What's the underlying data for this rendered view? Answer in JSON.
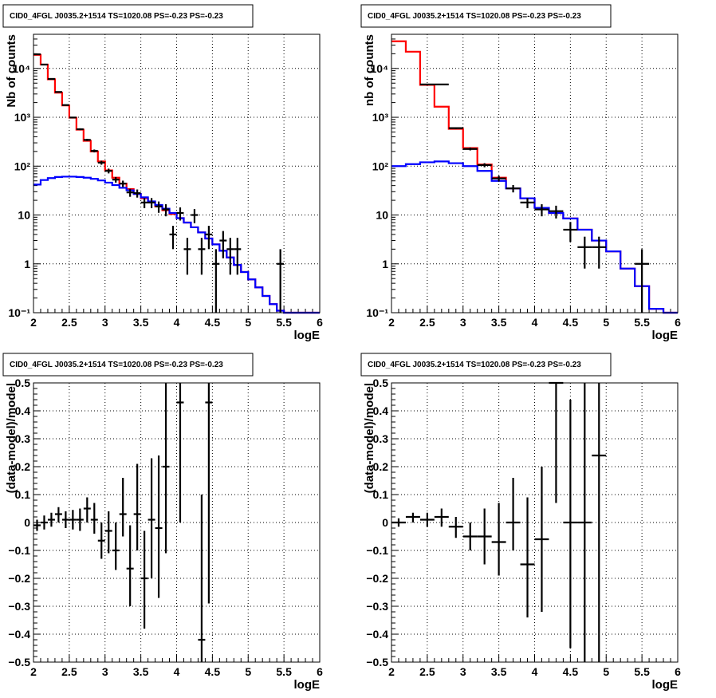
{
  "chart_data": [
    {
      "type": "line",
      "title": "CID0_4FGL J0035.2+1514 TS=1020.08 PS=-0.23 PS=-0.23",
      "xlabel": "logE",
      "ylabel": "Nb of counts",
      "ylog": true,
      "xlim": [
        2,
        6
      ],
      "ylim": [
        0.1,
        50000
      ],
      "x_ticks": [
        "2",
        "2.5",
        "3",
        "3.5",
        "4",
        "4.5",
        "5",
        "5.5",
        "6"
      ],
      "y_ticks": [
        "10⁻¹",
        "1",
        "10",
        "10²",
        "10³",
        "10⁴"
      ],
      "grid": true,
      "bin_edges": [
        2.0,
        2.1,
        2.2,
        2.3,
        2.4,
        2.5,
        2.6,
        2.7,
        2.8,
        2.9,
        3.0,
        3.1,
        3.2,
        3.3,
        3.4,
        3.5,
        3.6,
        3.7,
        3.8,
        3.9,
        4.0,
        4.1,
        4.2,
        4.3,
        4.4,
        4.5,
        4.6,
        4.7,
        4.8,
        4.9,
        5.0,
        5.1,
        5.2,
        5.3,
        5.4,
        5.5,
        5.6,
        5.7,
        5.8,
        5.9,
        6.0
      ],
      "series": [
        {
          "color": "#ff0000",
          "values": [
            19000,
            12000,
            6000,
            3200,
            1750,
            980,
            560,
            330,
            200,
            125,
            82,
            58,
            44,
            34,
            27,
            22,
            18,
            15,
            12.5,
            10.5,
            8.6,
            7,
            5.6,
            4.4,
            3.3,
            2.5,
            1.85,
            1.35,
            0.95,
            0.68,
            0.48,
            0.33,
            0.22,
            0.15,
            0.11,
            0.1,
            0.1,
            0.1,
            0.1,
            0.1
          ]
        },
        {
          "color": "#0000ff",
          "values": [
            42,
            52,
            57,
            60,
            61,
            61,
            60,
            58,
            55,
            51,
            46,
            41,
            36,
            32,
            27,
            23,
            19,
            16,
            13.5,
            11,
            8.6,
            7,
            5.6,
            4.4,
            3.3,
            2.5,
            1.85,
            1.35,
            0.95,
            0.68,
            0.48,
            0.33,
            0.22,
            0.15,
            0.11,
            0.1,
            0.1,
            0.1,
            0.1,
            0.1
          ]
        }
      ],
      "points": [
        {
          "x": 2.05,
          "y": 19500,
          "ylo": 19300,
          "yhi": 19700
        },
        {
          "x": 2.15,
          "y": 12000,
          "ylo": 11900,
          "yhi": 12100
        },
        {
          "x": 2.25,
          "y": 6100,
          "ylo": 6000,
          "yhi": 6200
        },
        {
          "x": 2.35,
          "y": 3300,
          "ylo": 3240,
          "yhi": 3360
        },
        {
          "x": 2.45,
          "y": 1780,
          "ylo": 1740,
          "yhi": 1820
        },
        {
          "x": 2.55,
          "y": 990,
          "ylo": 960,
          "yhi": 1020
        },
        {
          "x": 2.65,
          "y": 570,
          "ylo": 546,
          "yhi": 594
        },
        {
          "x": 2.75,
          "y": 345,
          "ylo": 327,
          "yhi": 363
        },
        {
          "x": 2.85,
          "y": 205,
          "ylo": 191,
          "yhi": 219
        },
        {
          "x": 2.95,
          "y": 118,
          "ylo": 107,
          "yhi": 129
        },
        {
          "x": 3.05,
          "y": 80,
          "ylo": 71,
          "yhi": 89
        },
        {
          "x": 3.15,
          "y": 53,
          "ylo": 46,
          "yhi": 60
        },
        {
          "x": 3.25,
          "y": 44,
          "ylo": 37.5,
          "yhi": 50.5
        },
        {
          "x": 3.35,
          "y": 29,
          "ylo": 23.6,
          "yhi": 34.4
        },
        {
          "x": 3.45,
          "y": 28,
          "ylo": 22.7,
          "yhi": 33.3
        },
        {
          "x": 3.55,
          "y": 18,
          "ylo": 13.8,
          "yhi": 22.2
        },
        {
          "x": 3.65,
          "y": 18,
          "ylo": 13.8,
          "yhi": 22.2
        },
        {
          "x": 3.75,
          "y": 15,
          "ylo": 11.1,
          "yhi": 18.9
        },
        {
          "x": 3.85,
          "y": 13,
          "ylo": 9.4,
          "yhi": 16.6
        },
        {
          "x": 3.95,
          "y": 4,
          "ylo": 2,
          "yhi": 6
        },
        {
          "x": 4.05,
          "y": 11,
          "ylo": 7.7,
          "yhi": 14.3
        },
        {
          "x": 4.15,
          "y": 2,
          "ylo": 0.6,
          "yhi": 3.4
        },
        {
          "x": 4.25,
          "y": 10,
          "ylo": 6.8,
          "yhi": 13.2
        },
        {
          "x": 4.35,
          "y": 2,
          "ylo": 0.6,
          "yhi": 3.4
        },
        {
          "x": 4.45,
          "y": 4,
          "ylo": 2,
          "yhi": 6
        },
        {
          "x": 4.55,
          "y": 1,
          "ylo": 0.1,
          "yhi": 2
        },
        {
          "x": 4.65,
          "y": 3,
          "ylo": 1.3,
          "yhi": 4.7
        },
        {
          "x": 4.75,
          "y": 2,
          "ylo": 0.6,
          "yhi": 3.4
        },
        {
          "x": 4.85,
          "y": 2,
          "ylo": 0.6,
          "yhi": 3.4
        },
        {
          "x": 5.45,
          "y": 1,
          "ylo": 0.1,
          "yhi": 2
        }
      ],
      "xerr": 0.05
    },
    {
      "type": "line",
      "title": "CID0_4FGL J0035.2+1514 TS=1020.08 PS=-0.23 PS=-0.23",
      "xlabel": "logE",
      "ylabel": "nb of counts",
      "ylog": true,
      "xlim": [
        2,
        6
      ],
      "ylim": [
        0.1,
        50000
      ],
      "x_ticks": [
        "2",
        "2.5",
        "3",
        "3.5",
        "4",
        "4.5",
        "5",
        "5.5",
        "6"
      ],
      "y_ticks": [
        "10⁻¹",
        "1",
        "10",
        "10²",
        "10³",
        "10⁴"
      ],
      "grid": true,
      "bin_edges": [
        2.0,
        2.2,
        2.4,
        2.6,
        2.8,
        3.0,
        3.2,
        3.4,
        3.6,
        3.8,
        4.0,
        4.2,
        4.4,
        4.6,
        4.8,
        5.0,
        5.2,
        5.4,
        5.6,
        5.8,
        6.0
      ],
      "series": [
        {
          "color": "#ff0000",
          "values": [
            36000,
            22000,
            4600,
            1650,
            580,
            235,
            108,
            58,
            35,
            22,
            14,
            11,
            8.5,
            5,
            3,
            1.8,
            0.8,
            0.35,
            0.12,
            0.1
          ]
        },
        {
          "color": "#0000ff",
          "values": [
            100,
            110,
            120,
            125,
            115,
            100,
            80,
            50,
            35,
            22,
            14,
            11,
            8.5,
            5,
            3,
            1.8,
            0.8,
            0.35,
            0.12,
            0.1
          ]
        }
      ],
      "points": [
        {
          "x": 2.5,
          "y": 4700,
          "ylo": 4630,
          "yhi": 4770
        },
        {
          "x": 2.7,
          "y": 4700,
          "ylo": 4630,
          "yhi": 4770
        },
        {
          "x": 2.9,
          "y": 600,
          "ylo": 575,
          "yhi": 625
        },
        {
          "x": 3.1,
          "y": 225,
          "ylo": 210,
          "yhi": 240
        },
        {
          "x": 3.3,
          "y": 105,
          "ylo": 95,
          "yhi": 115
        },
        {
          "x": 3.5,
          "y": 56,
          "ylo": 48.5,
          "yhi": 63.5
        },
        {
          "x": 3.7,
          "y": 35,
          "ylo": 29,
          "yhi": 41
        },
        {
          "x": 3.9,
          "y": 18,
          "ylo": 13.8,
          "yhi": 22.2
        },
        {
          "x": 4.1,
          "y": 13,
          "ylo": 9.4,
          "yhi": 16.6
        },
        {
          "x": 4.3,
          "y": 12,
          "ylo": 8.5,
          "yhi": 15.5
        },
        {
          "x": 4.5,
          "y": 5,
          "ylo": 2.8,
          "yhi": 7.2
        },
        {
          "x": 4.7,
          "y": 2.2,
          "ylo": 0.8,
          "yhi": 3.6
        },
        {
          "x": 4.9,
          "y": 2.2,
          "ylo": 0.8,
          "yhi": 3.6
        },
        {
          "x": 5.5,
          "y": 1,
          "ylo": 0.1,
          "yhi": 2
        }
      ],
      "xerr": 0.1
    },
    {
      "type": "scatter",
      "title": "CID0_4FGL J0035.2+1514 TS=1020.08 PS=-0.23 PS=-0.23",
      "xlabel": "logE",
      "ylabel": "(data-model)/model",
      "xlim": [
        2,
        6
      ],
      "ylim": [
        -0.5,
        0.5
      ],
      "x_ticks": [
        "2",
        "2.5",
        "3",
        "3.5",
        "4",
        "4.5",
        "5",
        "5.5",
        "6"
      ],
      "y_ticks": [
        "−0.5",
        "−0.4",
        "−0.3",
        "−0.2",
        "−0.1",
        "0",
        "0.1",
        "0.2",
        "0.3",
        "0.4",
        "0.5"
      ],
      "grid": true,
      "points": [
        {
          "x": 2.05,
          "y": -0.01,
          "ylo": -0.03,
          "yhi": 0.01
        },
        {
          "x": 2.15,
          "y": 0.0,
          "ylo": -0.025,
          "yhi": 0.025
        },
        {
          "x": 2.25,
          "y": 0.01,
          "ylo": -0.015,
          "yhi": 0.035
        },
        {
          "x": 2.35,
          "y": 0.03,
          "ylo": 0.0,
          "yhi": 0.055
        },
        {
          "x": 2.45,
          "y": 0.01,
          "ylo": -0.02,
          "yhi": 0.04
        },
        {
          "x": 2.55,
          "y": 0.01,
          "ylo": -0.025,
          "yhi": 0.045
        },
        {
          "x": 2.65,
          "y": 0.01,
          "ylo": -0.03,
          "yhi": 0.05
        },
        {
          "x": 2.75,
          "y": 0.05,
          "ylo": 0.0,
          "yhi": 0.09
        },
        {
          "x": 2.85,
          "y": 0.01,
          "ylo": -0.04,
          "yhi": 0.07
        },
        {
          "x": 2.95,
          "y": -0.065,
          "ylo": -0.13,
          "yhi": 0.0
        },
        {
          "x": 3.05,
          "y": -0.03,
          "ylo": -0.11,
          "yhi": 0.04
        },
        {
          "x": 3.15,
          "y": -0.1,
          "ylo": -0.17,
          "yhi": 0.0
        },
        {
          "x": 3.25,
          "y": 0.03,
          "ylo": -0.05,
          "yhi": 0.16
        },
        {
          "x": 3.35,
          "y": -0.165,
          "ylo": -0.3,
          "yhi": -0.01
        },
        {
          "x": 3.45,
          "y": 0.03,
          "ylo": -0.1,
          "yhi": 0.21
        },
        {
          "x": 3.55,
          "y": -0.2,
          "ylo": -0.38,
          "yhi": -0.03
        },
        {
          "x": 3.65,
          "y": 0.01,
          "ylo": -0.2,
          "yhi": 0.23
        },
        {
          "x": 3.75,
          "y": -0.02,
          "ylo": -0.27,
          "yhi": 0.24
        },
        {
          "x": 3.85,
          "y": 0.2,
          "ylo": -0.11,
          "yhi": 0.5
        },
        {
          "x": 4.05,
          "y": 0.43,
          "ylo": 0.0,
          "yhi": 0.5
        },
        {
          "x": 4.35,
          "y": -0.42,
          "ylo": -0.5,
          "yhi": 0.1
        },
        {
          "x": 4.45,
          "y": 0.43,
          "ylo": -0.29,
          "yhi": 0.5
        }
      ],
      "xerr": 0.05
    },
    {
      "type": "scatter",
      "title": "CID0_4FGL J0035.2+1514 TS=1020.08 PS=-0.23 PS=-0.23",
      "xlabel": "logE",
      "ylabel": "(data-model)/model",
      "xlim": [
        2,
        6
      ],
      "ylim": [
        -0.5,
        0.5
      ],
      "x_ticks": [
        "2",
        "2.5",
        "3",
        "3.5",
        "4",
        "4.5",
        "5",
        "5.5",
        "6"
      ],
      "y_ticks": [
        "−0.5",
        "−0.4",
        "−0.3",
        "−0.2",
        "−0.1",
        "0",
        "0.1",
        "0.2",
        "0.3",
        "0.4",
        "0.5"
      ],
      "grid": true,
      "points": [
        {
          "x": 2.1,
          "y": 0.0,
          "ylo": -0.015,
          "yhi": 0.015
        },
        {
          "x": 2.3,
          "y": 0.02,
          "ylo": 0.0,
          "yhi": 0.035
        },
        {
          "x": 2.5,
          "y": 0.01,
          "ylo": -0.015,
          "yhi": 0.035
        },
        {
          "x": 2.7,
          "y": 0.02,
          "ylo": -0.015,
          "yhi": 0.05
        },
        {
          "x": 2.9,
          "y": -0.015,
          "ylo": -0.055,
          "yhi": 0.02
        },
        {
          "x": 3.1,
          "y": -0.05,
          "ylo": -0.1,
          "yhi": 0.0
        },
        {
          "x": 3.3,
          "y": -0.05,
          "ylo": -0.15,
          "yhi": 0.05
        },
        {
          "x": 3.5,
          "y": -0.07,
          "ylo": -0.19,
          "yhi": 0.07
        },
        {
          "x": 3.7,
          "y": 0.0,
          "ylo": -0.1,
          "yhi": 0.16
        },
        {
          "x": 3.9,
          "y": -0.15,
          "ylo": -0.34,
          "yhi": 0.09
        },
        {
          "x": 4.1,
          "y": -0.06,
          "ylo": -0.32,
          "yhi": 0.2
        },
        {
          "x": 4.3,
          "y": 0.5,
          "ylo": 0.07,
          "yhi": 0.5
        },
        {
          "x": 4.5,
          "y": 0.0,
          "ylo": -0.45,
          "yhi": 0.44
        },
        {
          "x": 4.7,
          "y": 0.0,
          "ylo": -0.5,
          "yhi": 0.5
        },
        {
          "x": 4.9,
          "y": 0.24,
          "ylo": -0.5,
          "yhi": 0.5
        }
      ],
      "xerr": 0.1
    }
  ]
}
